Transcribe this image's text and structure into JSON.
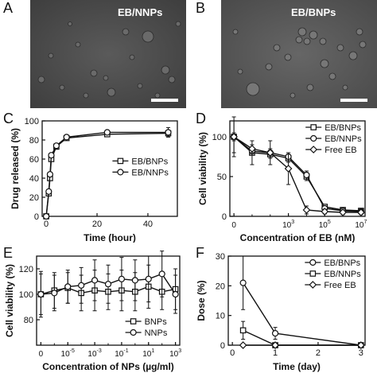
{
  "panel_letters": [
    "A",
    "B",
    "C",
    "D",
    "E",
    "F"
  ],
  "micrographs": [
    {
      "label": "EB/NNPs"
    },
    {
      "label": "EB/BNPs"
    }
  ],
  "chart_data": [
    {
      "type": "line",
      "panel": "C",
      "xlabel": "Time (hour)",
      "ylabel": "Drug released (%)",
      "xlim": [
        0,
        50
      ],
      "ylim": [
        0,
        100
      ],
      "xticks": [
        "0",
        "20",
        "40"
      ],
      "yticks": [
        "0",
        "20",
        "40",
        "60",
        "80",
        "100"
      ],
      "legend_position": "center-right",
      "series": [
        {
          "name": "EB/BNPs",
          "marker": "square",
          "x": [
            0,
            1,
            1.5,
            2,
            4,
            8,
            24,
            48
          ],
          "y": [
            0,
            24,
            40,
            60,
            73,
            82,
            86,
            87
          ],
          "err": [
            0,
            2,
            2,
            2,
            2,
            2,
            2,
            3
          ]
        },
        {
          "name": "EB/NNPs",
          "marker": "circle",
          "x": [
            0,
            1,
            1.5,
            2,
            4,
            8,
            24,
            48
          ],
          "y": [
            0,
            26,
            44,
            64,
            74,
            83,
            88,
            88
          ],
          "err": [
            0,
            2,
            2,
            2,
            2,
            2,
            2,
            5
          ]
        }
      ]
    },
    {
      "type": "line",
      "panel": "D",
      "xlabel": "Concentration of EB (nM)",
      "ylabel": "Cell viability (%)",
      "xscale": "log",
      "xlim": [
        1,
        10000000
      ],
      "ylim": [
        0,
        120
      ],
      "xtick_labels": [
        {
          "x": 1,
          "base": "0",
          "exp": ""
        },
        {
          "x": 1000,
          "base": "10",
          "exp": "3"
        },
        {
          "x": 100000,
          "base": "10",
          "exp": "5"
        },
        {
          "x": 10000000,
          "base": "10",
          "exp": "7"
        }
      ],
      "yticks": [
        "0",
        "50",
        "100"
      ],
      "legend_position": "top-right",
      "series": [
        {
          "name": "EB/BNPs",
          "marker": "square",
          "x": [
            1,
            10,
            100,
            1000,
            10000,
            100000,
            1000000,
            10000000
          ],
          "y": [
            100,
            80,
            78,
            73,
            50,
            12,
            8,
            7
          ],
          "err": [
            25,
            15,
            5,
            5,
            5,
            3,
            3,
            3
          ]
        },
        {
          "name": "EB/NNPs",
          "marker": "circle",
          "x": [
            1,
            10,
            100,
            1000,
            10000,
            100000,
            1000000,
            10000000
          ],
          "y": [
            100,
            82,
            80,
            75,
            52,
            10,
            7,
            6
          ],
          "err": [
            20,
            5,
            5,
            5,
            5,
            3,
            3,
            3
          ]
        },
        {
          "name": "Free EB",
          "marker": "diamond",
          "x": [
            1,
            10,
            100,
            1000,
            10000,
            100000,
            1000000,
            10000000
          ],
          "y": [
            100,
            85,
            80,
            60,
            8,
            6,
            5,
            5
          ],
          "err": [
            5,
            5,
            15,
            20,
            5,
            3,
            3,
            3
          ]
        }
      ]
    },
    {
      "type": "line",
      "panel": "E",
      "xlabel": "Concentration of NPs (µg/ml)",
      "ylabel": "Cell viability (%)",
      "xscale": "log",
      "xlim": [
        1e-07,
        1000
      ],
      "ylim": [
        60,
        130
      ],
      "xtick_labels": [
        {
          "x": 1e-07,
          "base": "0",
          "exp": ""
        },
        {
          "x": 1e-05,
          "base": "10",
          "exp": "-5"
        },
        {
          "x": 0.001,
          "base": "10",
          "exp": "-3"
        },
        {
          "x": 0.1,
          "base": "10",
          "exp": "-1"
        },
        {
          "x": 10,
          "base": "10",
          "exp": "1"
        },
        {
          "x": 1000,
          "base": "10",
          "exp": "3"
        }
      ],
      "yticks": [
        "80",
        "100",
        "120"
      ],
      "legend_position": "bottom-right",
      "series": [
        {
          "name": "BNPs",
          "marker": "square",
          "x": [
            1e-07,
            1e-06,
            1e-05,
            0.0001,
            0.001,
            0.01,
            0.1,
            1,
            10,
            100,
            1000
          ],
          "y": [
            100,
            103,
            105,
            101,
            103,
            102,
            103,
            102,
            106,
            102,
            104
          ],
          "err": [
            18,
            14,
            12,
            14,
            16,
            14,
            16,
            15,
            17,
            14,
            16
          ]
        },
        {
          "name": "NNPs",
          "marker": "circle",
          "x": [
            1e-07,
            1e-06,
            1e-05,
            0.0001,
            0.001,
            0.01,
            0.1,
            1,
            10,
            100,
            1000
          ],
          "y": [
            100,
            101,
            106,
            107,
            111,
            108,
            112,
            111,
            112,
            116,
            100
          ],
          "err": [
            16,
            14,
            13,
            14,
            16,
            15,
            17,
            16,
            18,
            18,
            15
          ]
        }
      ]
    },
    {
      "type": "line",
      "panel": "F",
      "xlabel": "Time (day)",
      "ylabel": "Dose (%)",
      "xlim": [
        0,
        3
      ],
      "ylim": [
        0,
        30
      ],
      "xticks": [
        "0",
        "1",
        "2",
        "3"
      ],
      "yticks": [
        "0",
        "10",
        "20",
        "30"
      ],
      "legend_position": "top-right",
      "series": [
        {
          "name": "EB/BNPs",
          "marker": "circle",
          "x": [
            0.25,
            1,
            3
          ],
          "y": [
            21,
            4,
            0
          ],
          "err": [
            9,
            2,
            0
          ]
        },
        {
          "name": "EB/NNPs",
          "marker": "square",
          "x": [
            0.25,
            1,
            3
          ],
          "y": [
            5,
            0,
            0
          ],
          "err": [
            3,
            0,
            0
          ]
        },
        {
          "name": "Free EB",
          "marker": "diamond",
          "x": [
            0.25,
            1,
            3
          ],
          "y": [
            0,
            0,
            0
          ],
          "err": [
            0,
            0,
            0
          ]
        }
      ]
    }
  ]
}
